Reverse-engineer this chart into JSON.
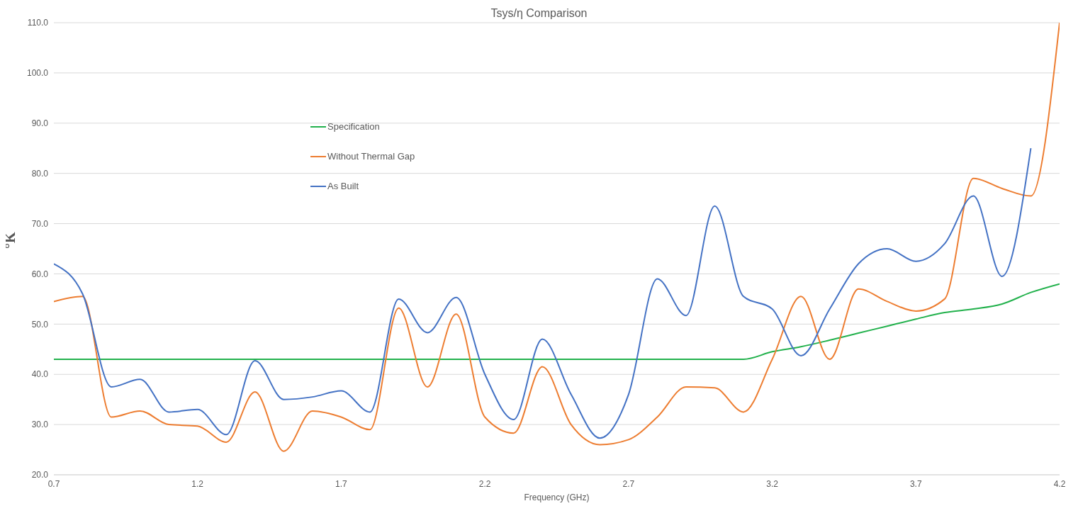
{
  "chart_data": {
    "type": "line",
    "title": "Tsys/η Comparison",
    "xlabel": "Frequency (GHz)",
    "ylabel": "°K",
    "x": [
      0.7,
      0.8,
      0.9,
      1.0,
      1.1,
      1.2,
      1.3,
      1.4,
      1.5,
      1.6,
      1.7,
      1.8,
      1.9,
      2.0,
      2.1,
      2.2,
      2.3,
      2.4,
      2.5,
      2.6,
      2.7,
      2.8,
      2.9,
      3.0,
      3.1,
      3.2,
      3.3,
      3.4,
      3.5,
      3.6,
      3.7,
      3.8,
      3.9,
      4.0,
      4.1,
      4.2
    ],
    "series": [
      {
        "name": "Specification",
        "color": "#22b14c",
        "values": [
          43,
          43,
          43,
          43,
          43,
          43,
          43,
          43,
          43,
          43,
          43,
          43,
          43,
          43,
          43,
          43,
          43,
          43,
          43,
          43,
          43,
          43,
          43,
          43,
          43,
          44.5,
          45.5,
          46.8,
          48.2,
          49.6,
          51,
          52.3,
          53,
          54,
          56.3,
          58
        ]
      },
      {
        "name": "Without Thermal Gap",
        "color": "#ed7d31",
        "values": [
          54.5,
          55.5,
          31.5,
          32.7,
          30,
          29.7,
          26.5,
          36.5,
          24.7,
          32.7,
          31.5,
          29,
          53.2,
          37.5,
          52,
          31.5,
          28.3,
          41.5,
          30,
          26,
          27,
          31.5,
          37.5,
          37.3,
          32.5,
          43,
          55.5,
          43,
          57,
          54.5,
          52.6,
          55,
          79,
          77,
          75.5,
          110
        ]
      },
      {
        "name": "As Built",
        "color": "#4472c4",
        "values": [
          62,
          56,
          37.5,
          39,
          32.5,
          33,
          28,
          42.7,
          35,
          35.5,
          36.7,
          32.5,
          55,
          48.3,
          55.3,
          40,
          31,
          47,
          36,
          27.3,
          36,
          59,
          51.7,
          73.5,
          55.5,
          53,
          43.7,
          53,
          62,
          65,
          62.5,
          66,
          75.5,
          59.5,
          85,
          null
        ]
      }
    ],
    "xlim": [
      0.7,
      4.2
    ],
    "xticks": [
      0.7,
      1.2,
      1.7,
      2.2,
      2.7,
      3.2,
      3.7,
      4.2
    ],
    "ylim": [
      20,
      110
    ],
    "yticks": [
      {
        "value": 20,
        "label": "20.0"
      },
      {
        "value": 30,
        "label": "30.0"
      },
      {
        "value": 40,
        "label": "40.0"
      },
      {
        "value": 50,
        "label": "50.0"
      },
      {
        "value": 60,
        "label": "60.0"
      },
      {
        "value": 70,
        "label": "70.0"
      },
      {
        "value": 80,
        "label": "80.0"
      },
      {
        "value": 90,
        "label": "90.0"
      },
      {
        "value": 100,
        "label": "100.0"
      },
      {
        "value": 110,
        "label": "110.0"
      }
    ],
    "grid": "y",
    "legend": "top left",
    "marker": "none",
    "line_style": "solid"
  }
}
